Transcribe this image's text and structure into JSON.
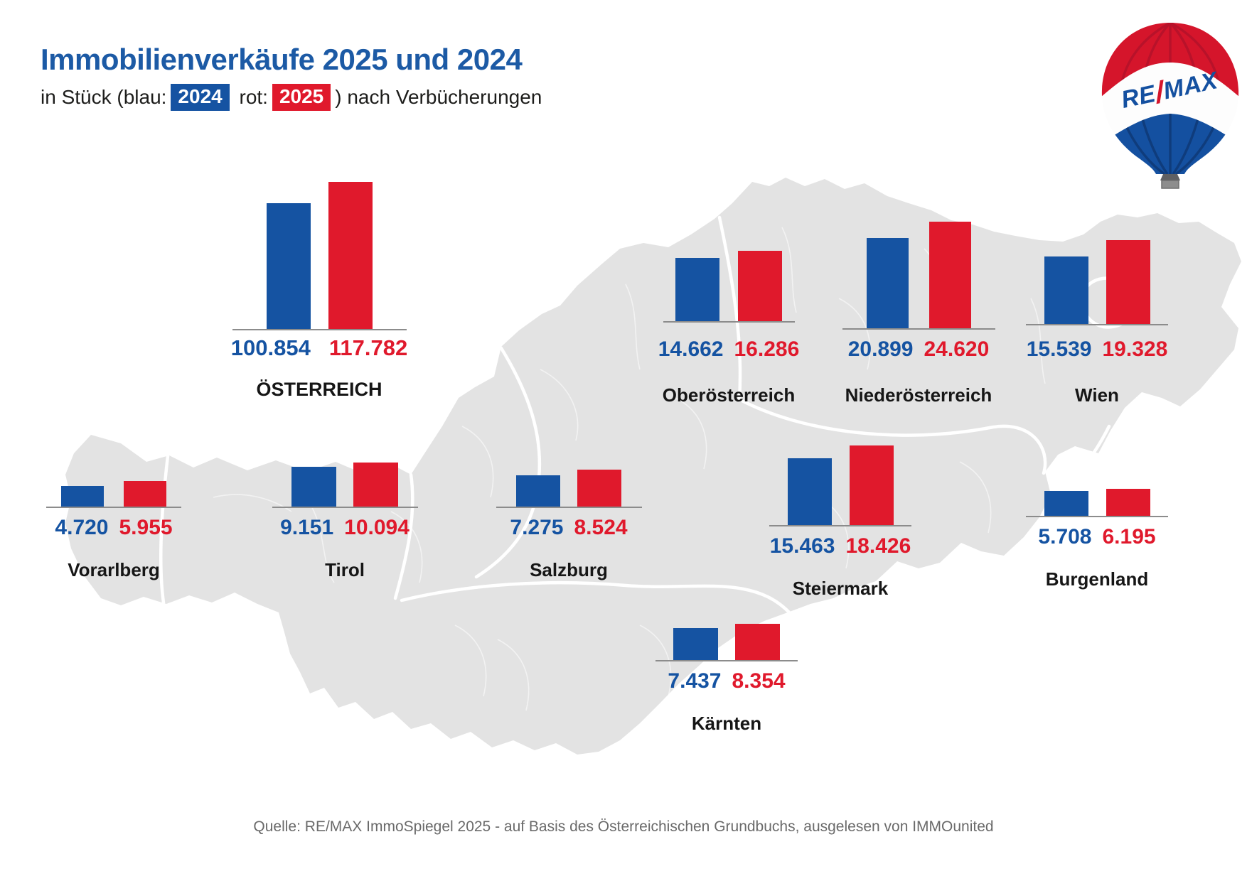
{
  "header": {
    "title": "Immobilienverkäufe 2025 und 2024",
    "subtitle_prefix": "in Stück (blau:",
    "legend_blue_year": "2024",
    "subtitle_mid": " rot:",
    "legend_red_year": "2025",
    "subtitle_suffix": ") nach Verbücherungen"
  },
  "logo": {
    "re": "RE",
    "slash": "/",
    "max": "MAX"
  },
  "colors": {
    "title_blue": "#1c5aa5",
    "bar_blue": "#1553a2",
    "bar_red": "#e0192c",
    "map_gray": "#e3e3e3",
    "baseline_gray": "#8c8c8c",
    "label_black": "#161616",
    "source_gray": "#6a6a6a"
  },
  "source": "Quelle: RE/MAX ImmoSpiegel 2025 - auf Basis des Österreichischen Grundbuchs, ausgelesen von IMMOunited",
  "chart_data": {
    "type": "bar",
    "title": "Immobilienverkäufe 2025 und 2024",
    "subtitle": "in Stück (blau: 2024, rot: 2025) nach Verbücherungen",
    "unit": "Stück (Verbücherungen)",
    "legend": [
      {
        "name": "2024",
        "color": "#1553a2"
      },
      {
        "name": "2025",
        "color": "#e0192c"
      }
    ],
    "regions": [
      {
        "key": "austria",
        "name": "ÖSTERREICH",
        "values": {
          "2024": 100854,
          "2025": 117782
        },
        "display": {
          "2024": "100.854",
          "2025": "117.782"
        }
      },
      {
        "key": "ooe",
        "name": "Oberösterreich",
        "values": {
          "2024": 14662,
          "2025": 16286
        },
        "display": {
          "2024": "14.662",
          "2025": "16.286"
        }
      },
      {
        "key": "noe",
        "name": "Niederösterreich",
        "values": {
          "2024": 20899,
          "2025": 24620
        },
        "display": {
          "2024": "20.899",
          "2025": "24.620"
        }
      },
      {
        "key": "wien",
        "name": "Wien",
        "values": {
          "2024": 15539,
          "2025": 19328
        },
        "display": {
          "2024": "15.539",
          "2025": "19.328"
        }
      },
      {
        "key": "vbg",
        "name": "Vorarlberg",
        "values": {
          "2024": 4720,
          "2025": 5955
        },
        "display": {
          "2024": "4.720",
          "2025": "5.955"
        }
      },
      {
        "key": "tirol",
        "name": "Tirol",
        "values": {
          "2024": 9151,
          "2025": 10094
        },
        "display": {
          "2024": "9.151",
          "2025": "10.094"
        }
      },
      {
        "key": "sbg",
        "name": "Salzburg",
        "values": {
          "2024": 7275,
          "2025": 8524
        },
        "display": {
          "2024": "7.275",
          "2025": "8.524"
        }
      },
      {
        "key": "stmk",
        "name": "Steiermark",
        "values": {
          "2024": 15463,
          "2025": 18426
        },
        "display": {
          "2024": "15.463",
          "2025": "18.426"
        }
      },
      {
        "key": "bgld",
        "name": "Burgenland",
        "values": {
          "2024": 5708,
          "2025": 6195
        },
        "display": {
          "2024": "5.708",
          "2025": "6.195"
        }
      },
      {
        "key": "ktn",
        "name": "Kärnten",
        "values": {
          "2024": 7437,
          "2025": 8354
        },
        "display": {
          "2024": "7.437",
          "2025": "8.354"
        }
      }
    ]
  }
}
